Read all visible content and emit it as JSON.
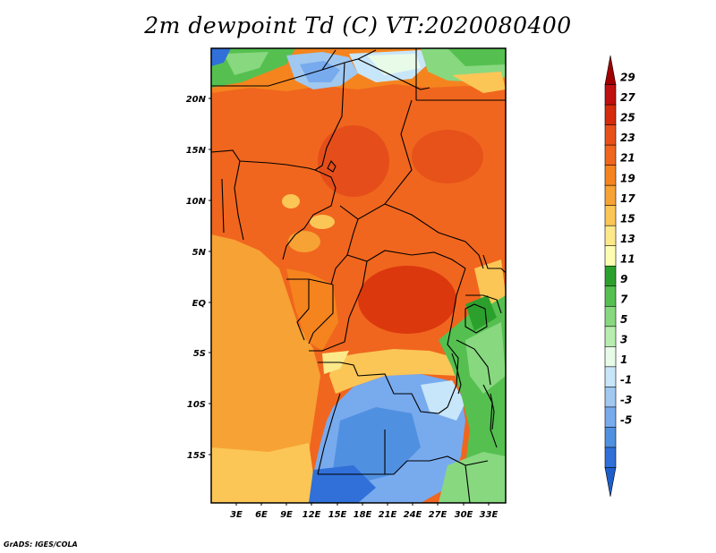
{
  "title": "2m dewpoint Td (C) VT:2020080400",
  "credit": "GrADS: IGES/COLA",
  "map": {
    "lon_range": [
      0,
      35
    ],
    "lat_range": [
      -20,
      25
    ],
    "lat_ticks": [
      "20N",
      "15N",
      "10N",
      "5N",
      "EQ",
      "5S",
      "10S",
      "15S"
    ],
    "lon_ticks": [
      "3E",
      "6E",
      "9E",
      "12E",
      "15E",
      "18E",
      "21E",
      "24E",
      "27E",
      "30E",
      "33E"
    ]
  },
  "colorbar": {
    "labels": [
      "29",
      "27",
      "25",
      "23",
      "21",
      "19",
      "17",
      "15",
      "13",
      "11",
      "9",
      "7",
      "5",
      "3",
      "1",
      "-1",
      "-3",
      "-5"
    ],
    "colors": [
      "#a00000",
      "#c01010",
      "#d42c0c",
      "#e8501a",
      "#f0661e",
      "#f5841e",
      "#f7a234",
      "#fbc656",
      "#fde98a",
      "#fdfdb2",
      "#2ca02c",
      "#55c050",
      "#88d880",
      "#b8ecb0",
      "#e8fae8",
      "#c8e6fa",
      "#a0c8f0",
      "#78aaee",
      "#5090e0",
      "#3070d8",
      "#1e5ec8"
    ]
  }
}
